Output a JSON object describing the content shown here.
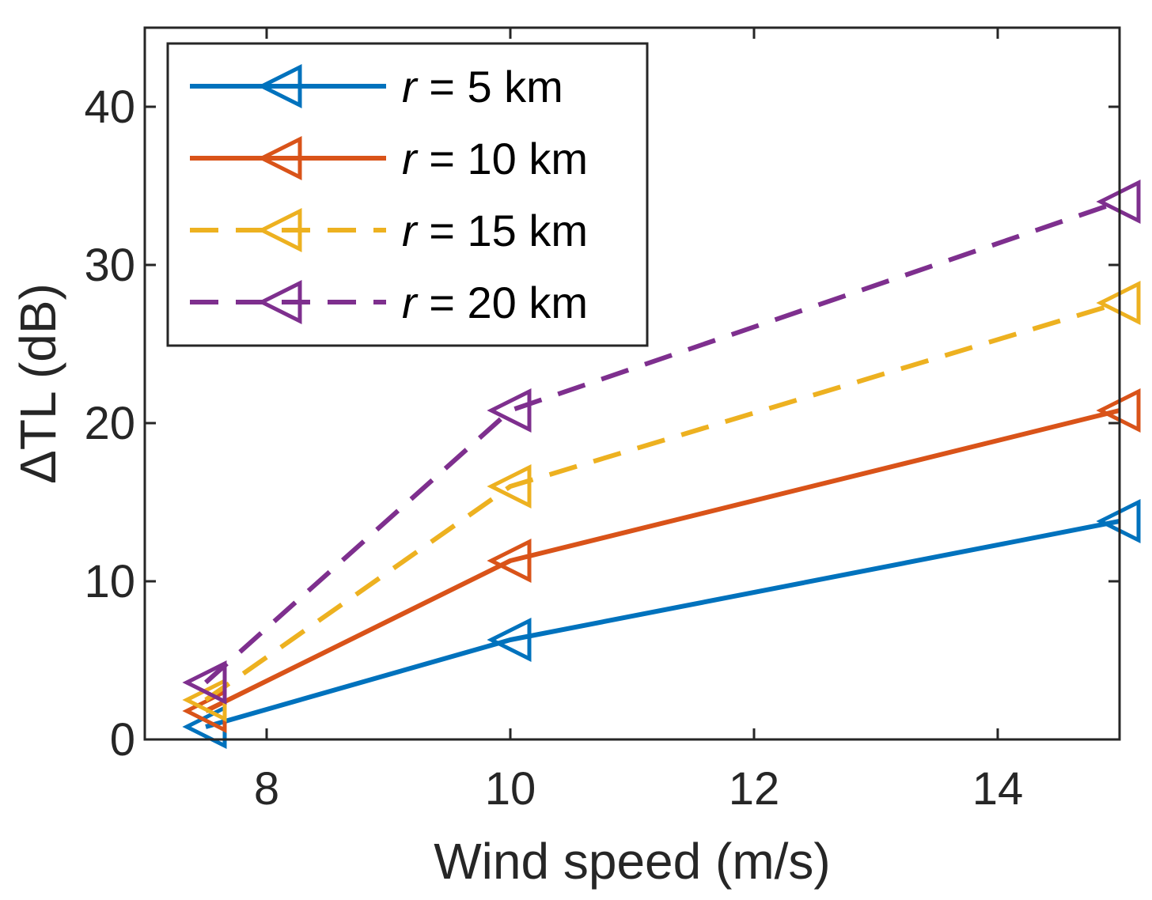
{
  "chart_data": {
    "type": "line",
    "xlabel": "Wind speed (m/s)",
    "ylabel": "ΔTL (dB)",
    "xlim": [
      7,
      15
    ],
    "ylim": [
      0,
      45
    ],
    "xticks": [
      8,
      10,
      12,
      14
    ],
    "yticks": [
      0,
      10,
      20,
      30,
      40
    ],
    "x": [
      7.5,
      10,
      15
    ],
    "legend_position": "top-left",
    "series": [
      {
        "name": "r = 5 km",
        "var": "r",
        "rest": " = 5 km",
        "values": [
          0.8,
          6.3,
          13.8
        ],
        "color": "#0072BD",
        "dashed": false
      },
      {
        "name": "r = 10 km",
        "var": "r",
        "rest": " = 10 km",
        "values": [
          1.8,
          11.3,
          20.8
        ],
        "color": "#D95319",
        "dashed": false
      },
      {
        "name": "r = 15 km",
        "var": "r",
        "rest": " = 15 km",
        "values": [
          2.5,
          16.0,
          27.6
        ],
        "color": "#EDB120",
        "dashed": true
      },
      {
        "name": "r = 20 km",
        "var": "r",
        "rest": " = 20 km",
        "values": [
          3.6,
          20.8,
          34.0
        ],
        "color": "#7E2F8E",
        "dashed": true
      }
    ]
  }
}
